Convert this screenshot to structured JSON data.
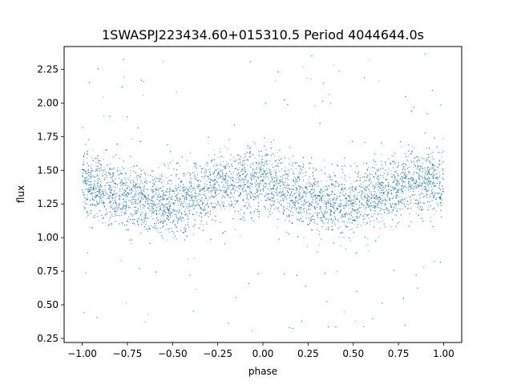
{
  "chart_data": {
    "type": "scatter",
    "title": "1SWASPJ223434.60+015310.5 Period 4044644.0s",
    "xlabel": "phase",
    "ylabel": "flux",
    "xlim": [
      -1.1,
      1.1
    ],
    "ylim": [
      0.22,
      2.42
    ],
    "xticks": [
      -1.0,
      -0.75,
      -0.5,
      -0.25,
      0.0,
      0.25,
      0.5,
      0.75,
      1.0
    ],
    "xtick_labels": [
      "−1.00",
      "−0.75",
      "−0.50",
      "−0.25",
      "0.00",
      "0.25",
      "0.50",
      "0.75",
      "1.00"
    ],
    "yticks": [
      0.25,
      0.5,
      0.75,
      1.0,
      1.25,
      1.5,
      1.75,
      2.0,
      2.25
    ],
    "ytick_labels": [
      "0.25",
      "0.50",
      "0.75",
      "1.00",
      "1.25",
      "1.50",
      "1.75",
      "2.00",
      "2.25"
    ],
    "grid": false,
    "series_color": "#1f77b4",
    "phase_range": [
      -1.0,
      1.0
    ],
    "median_flux_profile": {
      "phase": [
        -1.0,
        -0.9,
        -0.8,
        -0.7,
        -0.6,
        -0.5,
        -0.4,
        -0.3,
        -0.2,
        -0.1,
        0.0,
        0.1,
        0.2,
        0.3,
        0.4,
        0.5,
        0.6,
        0.7,
        0.8,
        0.9,
        1.0
      ],
      "flux": [
        1.4,
        1.36,
        1.32,
        1.3,
        1.27,
        1.24,
        1.3,
        1.35,
        1.4,
        1.42,
        1.4,
        1.36,
        1.32,
        1.3,
        1.27,
        1.24,
        1.3,
        1.35,
        1.4,
        1.42,
        1.4
      ]
    },
    "typical_spread": 0.12,
    "outlier_range": [
      0.3,
      2.37
    ]
  }
}
